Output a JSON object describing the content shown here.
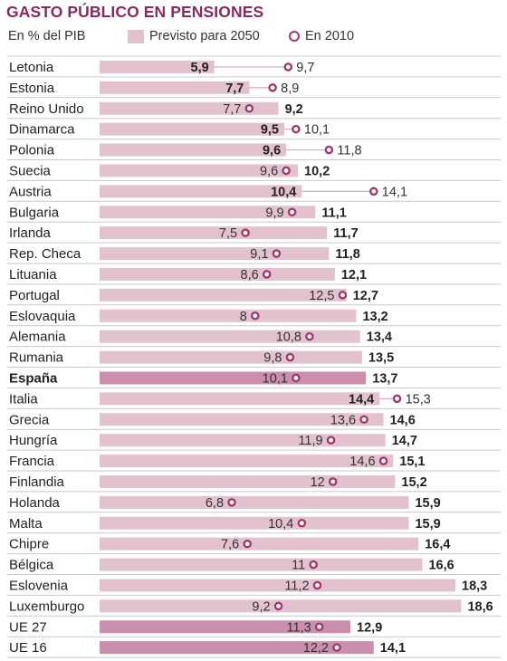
{
  "header": {
    "title": "GASTO PÚBLICO EN PENSIONES",
    "subtitle": "En % del PIB",
    "legend_bar": "Previsto para 2050",
    "legend_dot": "En 2010"
  },
  "colors": {
    "bar": "#e3c2cf",
    "bar_highlight": "#c98fac",
    "dot": "#a23a6c",
    "title": "#8a2a5c",
    "grid": "#c9c9c9"
  },
  "chart_data": {
    "type": "bar",
    "orientation": "horizontal",
    "xlim": [
      0,
      19
    ],
    "grid": "horizontal-row-separators",
    "legend_placement": "top",
    "series": [
      {
        "name": "Previsto para 2050",
        "values": [
          5.9,
          7.7,
          9.2,
          9.5,
          9.6,
          10.2,
          10.4,
          11.1,
          11.7,
          11.8,
          12.1,
          12.7,
          13.2,
          13.4,
          13.5,
          13.7,
          14.4,
          14.6,
          14.7,
          15.1,
          15.2,
          15.9,
          15.9,
          16.4,
          16.6,
          18.3,
          18.6,
          12.9,
          14.1
        ]
      },
      {
        "name": "En 2010",
        "values": [
          9.7,
          8.9,
          7.7,
          10.1,
          11.8,
          9.6,
          14.1,
          9.9,
          7.5,
          9.1,
          8.6,
          12.5,
          8,
          10.8,
          9.8,
          10.1,
          15.3,
          13.6,
          11.9,
          14.6,
          12,
          6.8,
          10.4,
          7.6,
          11,
          11.2,
          9.2,
          11.3,
          12.2
        ]
      }
    ],
    "categories": [
      "Letonia",
      "Estonia",
      "Reino Unido",
      "Dinamarca",
      "Polonia",
      "Suecia",
      "Austria",
      "Bulgaria",
      "Irlanda",
      "Rep. Checa",
      "Lituania",
      "Portugal",
      "Eslovaquia",
      "Alemania",
      "Rumania",
      "España",
      "Italia",
      "Grecia",
      "Hungría",
      "Francia",
      "Finlandia",
      "Holanda",
      "Malta",
      "Chipre",
      "Bélgica",
      "Eslovenia",
      "Luxemburgo",
      "UE 27",
      "UE 16"
    ],
    "label_2050": [
      "5,9",
      "7,7",
      "9,2",
      "9,5",
      "9,6",
      "10,2",
      "10,4",
      "11,1",
      "11,7",
      "11,8",
      "12,1",
      "12,7",
      "13,2",
      "13,4",
      "13,5",
      "13,7",
      "14,4",
      "14,6",
      "14,7",
      "15,1",
      "15,2",
      "15,9",
      "15,9",
      "16,4",
      "16,6",
      "18,3",
      "18,6",
      "12,9",
      "14,1"
    ],
    "label_2010": [
      "9,7",
      "8,9",
      "7,7",
      "10,1",
      "11,8",
      "9,6",
      "14,1",
      "9,9",
      "7,5",
      "9,1",
      "8,6",
      "12,5",
      "8",
      "10,8",
      "9,8",
      "10,1",
      "15,3",
      "13,6",
      "11,9",
      "14,6",
      "12",
      "6,8",
      "10,4",
      "7,6",
      "11",
      "11,2",
      "9,2",
      "11,3",
      "12,2"
    ],
    "highlighted": [
      "España",
      "UE 27",
      "UE 16"
    ],
    "bold_label": [
      "España"
    ]
  }
}
